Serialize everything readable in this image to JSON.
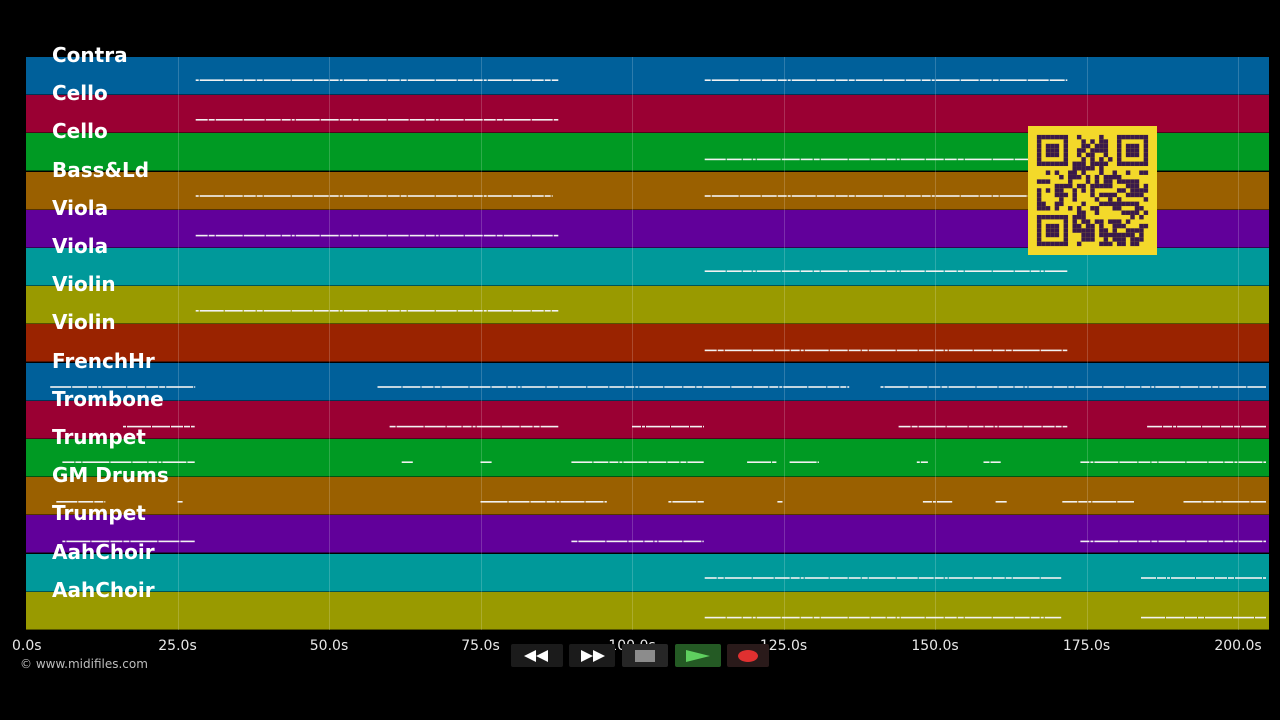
{
  "timeline": {
    "max_seconds": 205,
    "ticks": [
      "0.0s",
      "25.0s",
      "50.0s",
      "75.0s",
      "100.0s",
      "125.0s",
      "150.0s",
      "175.0s",
      "200.0s"
    ]
  },
  "tracks": [
    {
      "name": "Contra",
      "color": "#00609a",
      "segments": [
        [
          28,
          88
        ],
        [
          112,
          172
        ]
      ]
    },
    {
      "name": "Cello",
      "color": "#9a0033",
      "segments": [
        [
          28,
          88
        ]
      ]
    },
    {
      "name": "Cello",
      "color": "#009a23",
      "segments": [
        [
          112,
          172
        ]
      ]
    },
    {
      "name": "Bass&Ld",
      "color": "#9a6000",
      "segments": [
        [
          28,
          87
        ],
        [
          112,
          172
        ]
      ]
    },
    {
      "name": "Viola",
      "color": "#61009a",
      "segments": [
        [
          28,
          88
        ]
      ]
    },
    {
      "name": "Viola",
      "color": "#00999a",
      "segments": [
        [
          112,
          172
        ]
      ]
    },
    {
      "name": "Violin",
      "color": "#999a00",
      "segments": [
        [
          28,
          88
        ]
      ]
    },
    {
      "name": "Violin",
      "color": "#9a2300",
      "segments": [
        [
          112,
          172
        ]
      ]
    },
    {
      "name": "FrenchHr",
      "color": "#00609a",
      "segments": [
        [
          4,
          28
        ],
        [
          58,
          88
        ],
        [
          88,
          136
        ],
        [
          141,
          172
        ],
        [
          172,
          205
        ]
      ]
    },
    {
      "name": "Trombone",
      "color": "#9a0033",
      "segments": [
        [
          16,
          28
        ],
        [
          60,
          88
        ],
        [
          100,
          112
        ],
        [
          144,
          172
        ],
        [
          185,
          205
        ]
      ]
    },
    {
      "name": "Trumpet",
      "color": "#009a23",
      "segments": [
        [
          6,
          28
        ],
        [
          62,
          64
        ],
        [
          75,
          77
        ],
        [
          90,
          112
        ],
        [
          119,
          124
        ],
        [
          126,
          131
        ],
        [
          147,
          149
        ],
        [
          158,
          161
        ],
        [
          174,
          205
        ]
      ]
    },
    {
      "name": "GM Drums",
      "color": "#9a6000",
      "segments": [
        [
          5,
          13
        ],
        [
          25,
          26
        ],
        [
          75,
          96
        ],
        [
          106,
          112
        ],
        [
          124,
          125
        ],
        [
          148,
          153
        ],
        [
          160,
          162
        ],
        [
          171,
          183
        ],
        [
          191,
          205
        ]
      ]
    },
    {
      "name": "Trumpet",
      "color": "#61009a",
      "segments": [
        [
          6,
          28
        ],
        [
          90,
          112
        ],
        [
          174,
          205
        ]
      ]
    },
    {
      "name": "AahChoir",
      "color": "#00999a",
      "segments": [
        [
          112,
          171
        ],
        [
          184,
          205
        ]
      ]
    },
    {
      "name": "AahChoir",
      "color": "#999a00",
      "segments": [
        [
          112,
          171
        ],
        [
          184,
          205
        ]
      ]
    }
  ],
  "copyright": "© www.midifiles.com",
  "controls": {
    "rewind_icon": "rewind-icon",
    "fast_forward_icon": "fast-forward-icon",
    "stop_icon": "stop-icon",
    "play_icon": "play-icon",
    "record_icon": "record-icon",
    "play_color": "#5fcf5f",
    "record_color": "#e03030"
  }
}
